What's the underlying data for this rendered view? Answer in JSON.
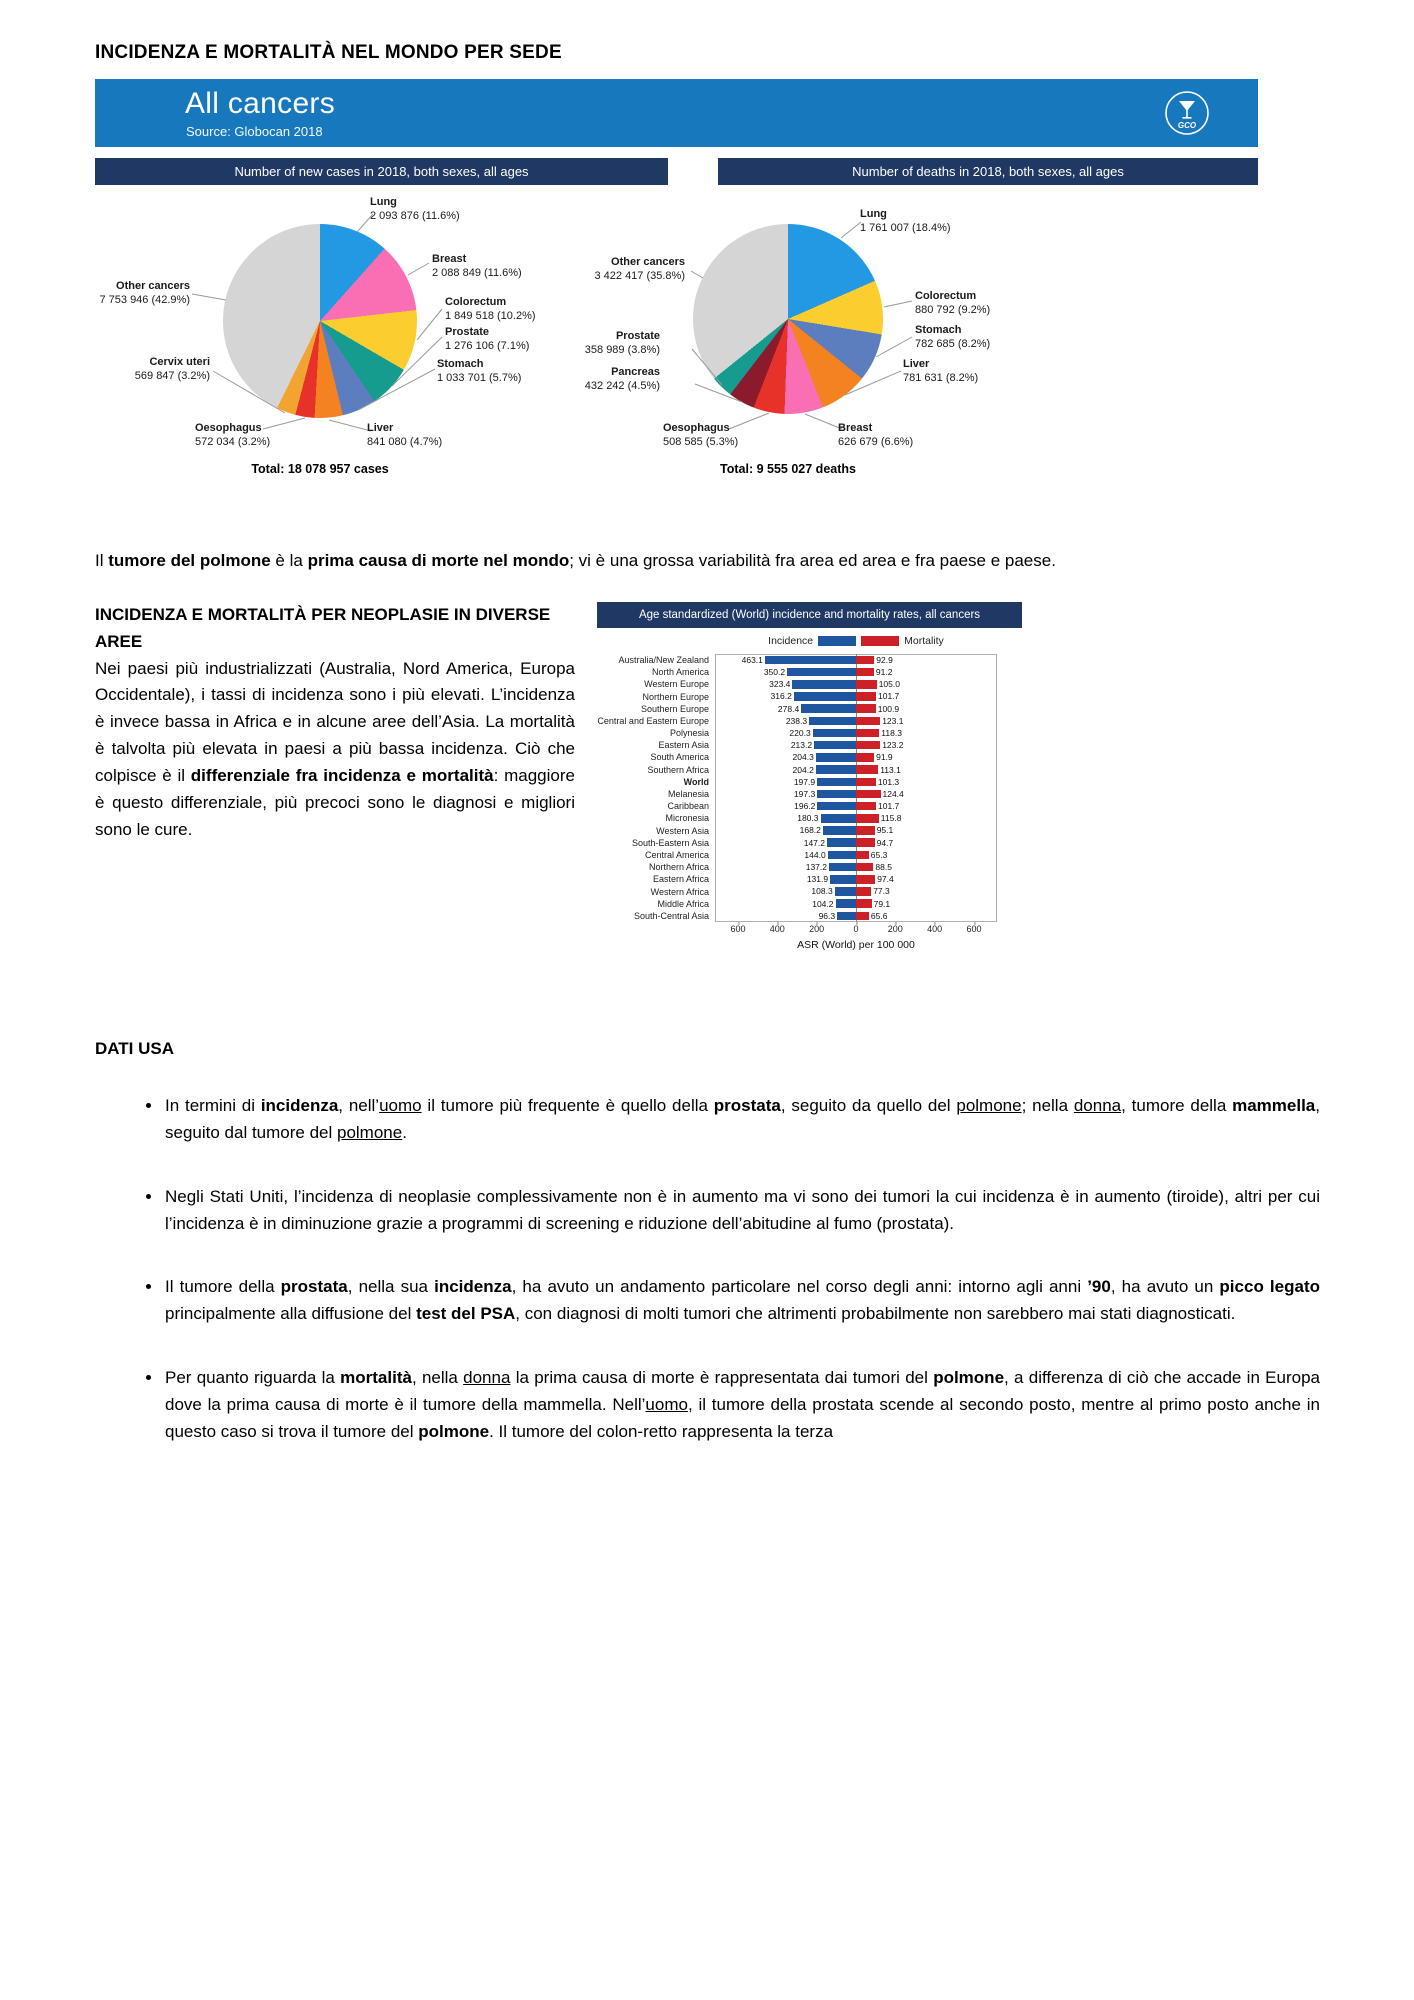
{
  "page": {
    "title": "INCIDENZA E MORTALITÀ NEL MONDO PER SEDE"
  },
  "figure": {
    "banner": {
      "title": "All cancers",
      "source": "Source: Globocan 2018",
      "logo": "GCO"
    }
  },
  "chart_data": [
    {
      "type": "pie",
      "title": "Number of new cases in 2018, both sexes, all ages",
      "total_text": "Total: 18 078 957 cases",
      "slices": [
        {
          "label": "Lung",
          "value_text": "2 093 876 (11.6%)",
          "pct": 11.6,
          "color": "#2499E3"
        },
        {
          "label": "Breast",
          "value_text": "2 088 849 (11.6%)",
          "pct": 11.6,
          "color": "#FA6EB4"
        },
        {
          "label": "Colorectum",
          "value_text": "1 849 518 (10.2%)",
          "pct": 10.2,
          "color": "#FCCD2E"
        },
        {
          "label": "Prostate",
          "value_text": "1 276 106 (7.1%)",
          "pct": 7.1,
          "color": "#169C8F"
        },
        {
          "label": "Stomach",
          "value_text": "1 033 701 (5.7%)",
          "pct": 5.7,
          "color": "#5C7EBE"
        },
        {
          "label": "Liver",
          "value_text": "841 080 (4.7%)",
          "pct": 4.7,
          "color": "#F58220"
        },
        {
          "label": "Oesophagus",
          "value_text": "572 034 (3.2%)",
          "pct": 3.2,
          "color": "#E63229"
        },
        {
          "label": "Cervix uteri",
          "value_text": "569 847 (3.2%)",
          "pct": 3.2,
          "color": "#F2A431"
        },
        {
          "label": "Other cancers",
          "value_text": "7 753 946 (42.9%)",
          "pct": 42.9,
          "color": "#D5D5D5"
        }
      ]
    },
    {
      "type": "pie",
      "title": "Number of deaths in 2018, both sexes, all ages",
      "total_text": "Total: 9 555 027 deaths",
      "slices": [
        {
          "label": "Lung",
          "value_text": "1 761 007 (18.4%)",
          "pct": 18.4,
          "color": "#2499E3"
        },
        {
          "label": "Colorectum",
          "value_text": "880 792 (9.2%)",
          "pct": 9.2,
          "color": "#FCCD2E"
        },
        {
          "label": "Stomach",
          "value_text": "782 685 (8.2%)",
          "pct": 8.2,
          "color": "#5C7EBE"
        },
        {
          "label": "Liver",
          "value_text": "781 631 (8.2%)",
          "pct": 8.2,
          "color": "#F58220"
        },
        {
          "label": "Breast",
          "value_text": "626 679 (6.6%)",
          "pct": 6.6,
          "color": "#FA6EB4"
        },
        {
          "label": "Oesophagus",
          "value_text": "508 585 (5.3%)",
          "pct": 5.3,
          "color": "#E63229"
        },
        {
          "label": "Pancreas",
          "value_text": "432 242 (4.5%)",
          "pct": 4.5,
          "color": "#8B1A2C"
        },
        {
          "label": "Prostate",
          "value_text": "358 989 (3.8%)",
          "pct": 3.8,
          "color": "#169C8F"
        },
        {
          "label": "Other cancers",
          "value_text": "3 422 417 (35.8%)",
          "pct": 35.8,
          "color": "#D5D5D5"
        }
      ]
    },
    {
      "type": "bar-butterfly",
      "title": "Age standardized (World) incidence and mortality rates, all cancers",
      "xlabel": "ASR (World) per 100 000",
      "x_ticks": [
        "600",
        "400",
        "200",
        "0",
        "200",
        "400",
        "600"
      ],
      "emphasis_category": "World",
      "legend_position": "top",
      "categories": [
        "Australia/New Zealand",
        "North America",
        "Western Europe",
        "Northern Europe",
        "Southern Europe",
        "Central and Eastern Europe",
        "Polynesia",
        "Eastern Asia",
        "South America",
        "Southern Africa",
        "World",
        "Melanesia",
        "Caribbean",
        "Micronesia",
        "Western Asia",
        "South-Eastern Asia",
        "Central America",
        "Northern Africa",
        "Eastern Africa",
        "Western Africa",
        "Middle Africa",
        "South-Central Asia"
      ],
      "series": [
        {
          "name": "Incidence",
          "values": [
            463.1,
            350.2,
            323.4,
            316.2,
            278.4,
            238.3,
            220.3,
            213.2,
            204.3,
            204.2,
            197.9,
            197.3,
            196.2,
            180.3,
            168.2,
            147.2,
            144.0,
            137.2,
            131.9,
            108.3,
            104.2,
            96.3
          ]
        },
        {
          "name": "Mortality",
          "values": [
            92.9,
            91.2,
            105.0,
            101.7,
            100.9,
            123.1,
            118.3,
            123.2,
            91.9,
            113.1,
            101.3,
            124.4,
            101.7,
            115.8,
            95.1,
            94.7,
            65.3,
            88.5,
            97.4,
            77.3,
            79.1,
            65.6
          ]
        }
      ],
      "colors": {
        "incidence": "#1E56A0",
        "mortality": "#CE2127"
      }
    }
  ],
  "lead_paragraph": "Il **tumore del polmone** è la **prima causa di morte nel mondo**; vi è una grossa variabilità fra area ed area e fra paese e paese.",
  "section_areas": {
    "heading": "INCIDENZA E MORTALITÀ PER NEOPLASIE IN DIVERSE AREE",
    "body": "Nei paesi più industrializzati (Australia, Nord America, Europa Occidentale), i tassi di incidenza sono i più elevati. L’incidenza è invece bassa in Africa e in alcune aree dell’Asia. La mortalità è talvolta più elevata in paesi a più bassa incidenza. Ciò che colpisce è il **differenziale fra incidenza e mortalità**: maggiore è questo differenziale, più precoci sono le diagnosi e migliori sono le cure."
  },
  "section_usa": {
    "heading": "DATI USA",
    "bullets": [
      "In termini di **incidenza**, nell’__uomo__ il tumore più frequente è quello della **prostata**, seguito da quello del __polmone__; nella __donna__, tumore della **mammella**, seguito dal tumore del __polmone__.",
      "Negli Stati Uniti, l’incidenza di neoplasie complessivamente non è in aumento ma vi sono dei tumori la cui incidenza è in aumento (tiroide), altri per cui l’incidenza è in diminuzione grazie a programmi di screening e riduzione dell’abitudine al fumo (prostata).",
      "Il tumore della **prostata**, nella sua **incidenza**, ha avuto un andamento particolare nel corso degli anni: intorno agli anni **’90**, ha avuto un **picco legato** principalmente alla diffusione del **test del PSA**, con diagnosi di molti tumori che altrimenti probabilmente non sarebbero mai stati diagnosticati.",
      "Per quanto riguarda la **mortalità**, nella __donna__ la prima causa di morte è rappresentata dai tumori del **polmone**, a differenza di ciò che accade in Europa dove la prima causa di morte è il tumore della mammella. Nell’__uomo__, il tumore della prostata scende al secondo posto, mentre al primo posto anche in questo caso si trova il tumore del **polmone**. Il tumore del colon-retto rappresenta la terza"
    ]
  }
}
